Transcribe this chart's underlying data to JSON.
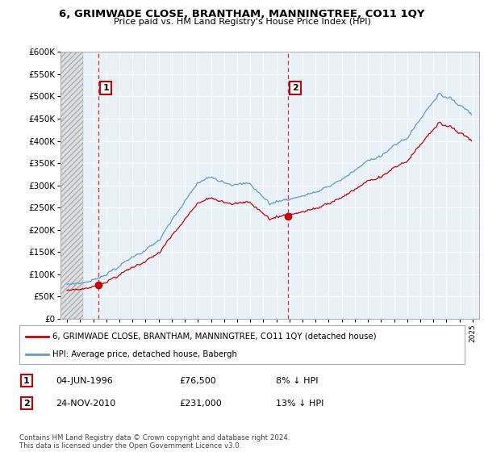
{
  "title": "6, GRIMWADE CLOSE, BRANTHAM, MANNINGTREE, CO11 1QY",
  "subtitle": "Price paid vs. HM Land Registry's House Price Index (HPI)",
  "ytick_values": [
    0,
    50000,
    100000,
    150000,
    200000,
    250000,
    300000,
    350000,
    400000,
    450000,
    500000,
    550000,
    600000
  ],
  "xmin": 1993.5,
  "xmax": 2025.5,
  "ymin": 0,
  "ymax": 600000,
  "hpi_color": "#6699cc",
  "property_color": "#cc0000",
  "marker1_date": 1996.42,
  "marker1_value": 76500,
  "marker2_date": 2010.9,
  "marker2_value": 231000,
  "vline1_x": 1996.42,
  "vline2_x": 2010.9,
  "legend_property": "6, GRIMWADE CLOSE, BRANTHAM, MANNINGTREE, CO11 1QY (detached house)",
  "legend_hpi": "HPI: Average price, detached house, Babergh",
  "table_rows": [
    {
      "num": "1",
      "date": "04-JUN-1996",
      "price": "£76,500",
      "hpi": "8% ↓ HPI"
    },
    {
      "num": "2",
      "date": "24-NOV-2010",
      "price": "£231,000",
      "hpi": "13% ↓ HPI"
    }
  ],
  "footer": "Contains HM Land Registry data © Crown copyright and database right 2024.\nThis data is licensed under the Open Government Licence v3.0.",
  "background_color": "#ffffff",
  "chart_bg_color": "#e8f0f8",
  "grid_color": "#ffffff",
  "hatch_color": "#d0d0d0"
}
